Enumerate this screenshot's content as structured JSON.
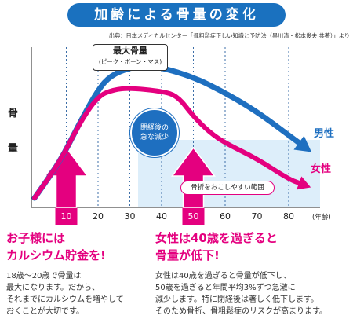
{
  "banner_title": "加齢による骨量の変化",
  "source_note": "出典：日本メディカルセンター「骨粗鬆症正しい知識と予防法（黒川清・松本俊夫 共著）」より",
  "peak_label": {
    "title": "最大骨量",
    "subtitle": "(ピーク・ボーン・マス)"
  },
  "menopause_label": [
    "閉経後の",
    "急な減少"
  ],
  "fracture_zone_label": "骨折をおこしやすい範囲",
  "chart_data": {
    "type": "line",
    "ylabel": [
      "骨",
      "量"
    ],
    "x_unit": "(年齢)",
    "x_ticks": [
      10,
      20,
      30,
      40,
      50,
      60,
      70,
      80
    ],
    "xlim": [
      0,
      85
    ],
    "grid_vertical": true,
    "series": [
      {
        "name": "男性",
        "color": "#1e6fc0",
        "points": [
          [
            0,
            0.05
          ],
          [
            8,
            0.28
          ],
          [
            14,
            0.52
          ],
          [
            20,
            0.74
          ],
          [
            24,
            0.83
          ],
          [
            30,
            0.88
          ],
          [
            35,
            0.89
          ],
          [
            40,
            0.88
          ],
          [
            50,
            0.82
          ],
          [
            60,
            0.72
          ],
          [
            70,
            0.6
          ],
          [
            80,
            0.45
          ],
          [
            84,
            0.39
          ]
        ]
      },
      {
        "name": "女性",
        "color": "#e4007f",
        "points": [
          [
            0,
            0.05
          ],
          [
            8,
            0.28
          ],
          [
            14,
            0.52
          ],
          [
            20,
            0.7
          ],
          [
            25,
            0.74
          ],
          [
            30,
            0.75
          ],
          [
            40,
            0.73
          ],
          [
            45,
            0.7
          ],
          [
            50,
            0.57
          ],
          [
            55,
            0.47
          ],
          [
            60,
            0.4
          ],
          [
            70,
            0.3
          ],
          [
            80,
            0.17
          ],
          [
            84,
            0.14
          ]
        ]
      }
    ],
    "highlight_ages": [
      10,
      50
    ]
  },
  "left_section": {
    "heading": [
      "お子様には",
      "カルシウム貯金を!"
    ],
    "body": [
      "18歳～20歳で骨量は",
      "最大になります。だから、",
      "それまでにカルシウムを増やして",
      "おくことが大切です。"
    ]
  },
  "right_section": {
    "heading": [
      "女性は40歳を過ぎると",
      "骨量が低下!"
    ],
    "body": [
      "女性は40歳を過ぎると骨量が低下し、",
      "50歳を過ぎると年間平均3%ずつ急激に",
      "減少します。特に閉経後は著しく低下します。",
      "そのため骨折、骨粗鬆症のリスクが高まります。"
    ]
  },
  "colors": {
    "blue": "#1e6fc0",
    "pink": "#e4007f",
    "zone": "#ddeefa"
  }
}
